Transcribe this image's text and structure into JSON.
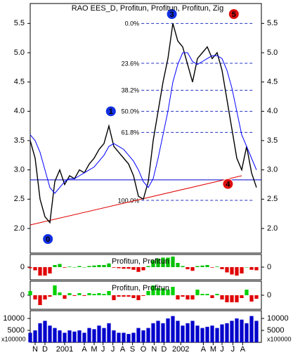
{
  "chart_data": [
    {
      "type": "line",
      "title": "RAO EES_D, Profitun, Profitun, Profitun, Zig",
      "x": [
        0,
        0.5,
        1,
        1.5,
        2,
        2.5,
        3,
        3.5,
        4,
        4.5,
        5,
        5.5,
        6,
        6.5,
        7,
        7.5,
        8,
        8.5,
        9,
        9.5,
        10,
        10.5,
        11,
        11.5,
        12,
        12.5,
        13,
        13.5,
        14,
        14.5,
        15,
        15.5,
        16,
        16.5,
        17,
        17.5,
        18,
        18.5,
        19,
        19.5,
        20,
        20.5,
        21,
        21.5,
        22,
        22.5,
        23
      ],
      "series": [
        {
          "color": "#000000",
          "values": [
            3.5,
            3.2,
            2.5,
            2.2,
            2.1,
            2.8,
            3.0,
            2.75,
            2.9,
            2.85,
            3.0,
            2.95,
            3.1,
            3.2,
            3.35,
            3.45,
            3.75,
            3.4,
            3.3,
            3.2,
            3.1,
            2.9,
            2.55,
            2.5,
            2.8,
            3.5,
            4.0,
            4.5,
            4.9,
            5.5,
            5.2,
            5.1,
            4.8,
            4.5,
            4.9,
            5.0,
            5.1,
            4.9,
            5.0,
            4.7,
            4.2,
            3.7,
            3.2,
            3.0,
            3.4,
            2.95,
            2.7
          ]
        },
        {
          "color": "#0000ff",
          "values": [
            3.6,
            3.5,
            3.3,
            3.0,
            2.7,
            2.6,
            2.7,
            2.8,
            2.85,
            2.85,
            2.9,
            2.95,
            3.0,
            3.05,
            3.15,
            3.25,
            3.4,
            3.45,
            3.4,
            3.35,
            3.25,
            3.15,
            3.0,
            2.8,
            2.7,
            2.85,
            3.2,
            3.6,
            4.0,
            4.5,
            4.8,
            5.0,
            5.0,
            4.85,
            4.8,
            4.85,
            4.9,
            4.95,
            4.95,
            4.9,
            4.7,
            4.4,
            4.0,
            3.6,
            3.4,
            3.2,
            3.0
          ]
        }
      ],
      "xlim": [
        0,
        23.5
      ],
      "xticks": [
        {
          "value": 0.5,
          "label": "N"
        },
        {
          "value": 1.5,
          "label": "D"
        },
        {
          "value": 3.5,
          "label": "2001"
        },
        {
          "value": 5.5,
          "label": "A"
        },
        {
          "value": 6.5,
          "label": "M"
        },
        {
          "value": 7.4,
          "label": "J"
        },
        {
          "value": 8.4,
          "label": "J"
        },
        {
          "value": 9.4,
          "label": "A"
        },
        {
          "value": 10.4,
          "label": "S"
        },
        {
          "value": 11.5,
          "label": "O"
        },
        {
          "value": 12.6,
          "label": "N"
        },
        {
          "value": 13.6,
          "label": "D"
        },
        {
          "value": 15.3,
          "label": "2002"
        },
        {
          "value": 17.6,
          "label": "A"
        },
        {
          "value": 18.6,
          "label": "M"
        },
        {
          "value": 19.5,
          "label": "J"
        },
        {
          "value": 20.6,
          "label": "J"
        },
        {
          "value": 21.6,
          "label": "A"
        }
      ],
      "ylim": [
        1.58,
        5.84
      ],
      "yticks": [
        {
          "value": 2,
          "label": "2.0"
        },
        2.5,
        {
          "value": 3,
          "label": "3.0"
        },
        3.5,
        {
          "value": 4,
          "label": "4.0"
        },
        4.5,
        {
          "value": 5,
          "label": "5.0"
        },
        5.5
      ],
      "fib_xlim": [
        11.3,
        22.8
      ],
      "fib_levels": [
        {
          "label": "0.0%",
          "value": 5.5
        },
        {
          "label": "23.6%",
          "value": 4.82
        },
        {
          "label": "38.2%",
          "value": 4.36
        },
        {
          "label": "50.0%",
          "value": 4.0
        },
        {
          "label": "61.8%",
          "value": 3.64
        },
        {
          "label": "100.0%",
          "value": 2.48
        }
      ],
      "hline": {
        "value": 2.83,
        "color": "#0000cc"
      },
      "trendline": {
        "x": [
          0,
          21.5
        ],
        "y": [
          2.06,
          2.9
        ],
        "color": "#e00000"
      },
      "annotations": [
        {
          "label": "0",
          "x": 1.8,
          "y": 1.82,
          "color": "#1030e0"
        },
        {
          "label": "1",
          "x": 8.2,
          "y": 4.0,
          "color": "#1030e0"
        },
        {
          "label": "3",
          "x": 14.4,
          "y": 5.66,
          "color": "#1030e0"
        },
        {
          "label": "4",
          "x": 20.1,
          "y": 2.76,
          "color": "#e01010"
        },
        {
          "label": "5",
          "x": 20.7,
          "y": 5.66,
          "color": "#e01010"
        }
      ]
    },
    {
      "type": "bar",
      "title": "Profitun, Profitun",
      "x": [
        0,
        0.5,
        1,
        1.5,
        2,
        2.5,
        3,
        3.5,
        4,
        4.5,
        5,
        5.5,
        6,
        6.5,
        7,
        7.5,
        8,
        8.5,
        9,
        9.5,
        10,
        10.5,
        11,
        11.5,
        12,
        12.5,
        13,
        13.5,
        14,
        14.5,
        15,
        15.5,
        16,
        16.5,
        17,
        17.5,
        18,
        18.5,
        19,
        19.5,
        20,
        20.5,
        21,
        21.5,
        22,
        22.5,
        23
      ],
      "values": [
        -0.1,
        -0.3,
        -0.8,
        -0.8,
        -0.6,
        0.2,
        0.3,
        -0.05,
        0.05,
        0,
        0.1,
        0,
        0.1,
        0.15,
        0.2,
        0.2,
        0.35,
        -0.05,
        -0.1,
        -0.15,
        -0.15,
        -0.25,
        -0.45,
        -0.3,
        0.1,
        0.65,
        0.8,
        0.9,
        0.9,
        1.0,
        0.4,
        0.1,
        -0.2,
        -0.35,
        0.1,
        0.15,
        0.2,
        -0.05,
        0.05,
        -0.2,
        -0.5,
        -0.7,
        -0.8,
        -0.6,
        0,
        -0.25,
        -0.3
      ],
      "positive_color": "#00c000",
      "negative_color": "#e00000",
      "xlim": [
        0,
        23.5
      ],
      "ylim": [
        -1.2,
        1.2
      ],
      "yticks": [
        0
      ]
    },
    {
      "type": "bar",
      "title": "Profitun, Profitun",
      "x": [
        0,
        0.5,
        1,
        1.5,
        2,
        2.5,
        3,
        3.5,
        4,
        4.5,
        5,
        5.5,
        6,
        6.5,
        7,
        7.5,
        8,
        8.5,
        9,
        9.5,
        10,
        10.5,
        11,
        11.5,
        12,
        12.5,
        13,
        13.5,
        14,
        14.5,
        15,
        15.5,
        16,
        16.5,
        17,
        17.5,
        18,
        18.5,
        19,
        19.5,
        20,
        20.5,
        21,
        21.5,
        22,
        22.5,
        23
      ],
      "values": [
        0.3,
        -0.3,
        -0.7,
        -0.3,
        -0.1,
        0.7,
        0.2,
        -0.25,
        0.15,
        -0.05,
        0.15,
        -0.05,
        0.15,
        0.1,
        0.15,
        0.1,
        0.3,
        -0.35,
        -0.1,
        -0.1,
        -0.1,
        -0.2,
        -0.35,
        -0.05,
        0.3,
        0.7,
        0.5,
        0.5,
        0.4,
        0.6,
        -0.3,
        -0.1,
        -0.3,
        -0.3,
        0.4,
        0.1,
        0.1,
        -0.2,
        0.1,
        -0.3,
        -0.5,
        -0.5,
        -0.5,
        -0.2,
        0.4,
        -0.45,
        -0.25
      ],
      "positive_color": "#00d000",
      "negative_color": "#e00000",
      "xlim": [
        0,
        23.5
      ],
      "ylim": [
        -1,
        1
      ],
      "yticks": [
        0
      ]
    },
    {
      "type": "bar",
      "axis_label": "x100000",
      "x": [
        0,
        0.5,
        1,
        1.5,
        2,
        2.5,
        3,
        3.5,
        4,
        4.5,
        5,
        5.5,
        6,
        6.5,
        7,
        7.5,
        8,
        8.5,
        9,
        9.5,
        10,
        10.5,
        11,
        11.5,
        12,
        12.5,
        13,
        13.5,
        14,
        14.5,
        15,
        15.5,
        16,
        16.5,
        17,
        17.5,
        18,
        18.5,
        19,
        19.5,
        20,
        20.5,
        21,
        21.5,
        22,
        22.5,
        23
      ],
      "values": [
        4000,
        5000,
        8000,
        9000,
        7000,
        6000,
        5000,
        4000,
        5000,
        4500,
        5000,
        4000,
        6000,
        5500,
        7000,
        6000,
        8000,
        5000,
        4000,
        4000,
        3500,
        4000,
        6000,
        5000,
        6000,
        8000,
        9000,
        8000,
        10000,
        11000,
        9000,
        7000,
        8000,
        9000,
        7000,
        6000,
        6500,
        7000,
        6000,
        7500,
        8000,
        9000,
        10000,
        9500,
        8000,
        11000,
        9000
      ],
      "color": "#0000cc",
      "xlim": [
        0,
        23.5
      ],
      "ylim": [
        0,
        13235
      ],
      "yticks": [
        5000,
        10000
      ]
    }
  ]
}
